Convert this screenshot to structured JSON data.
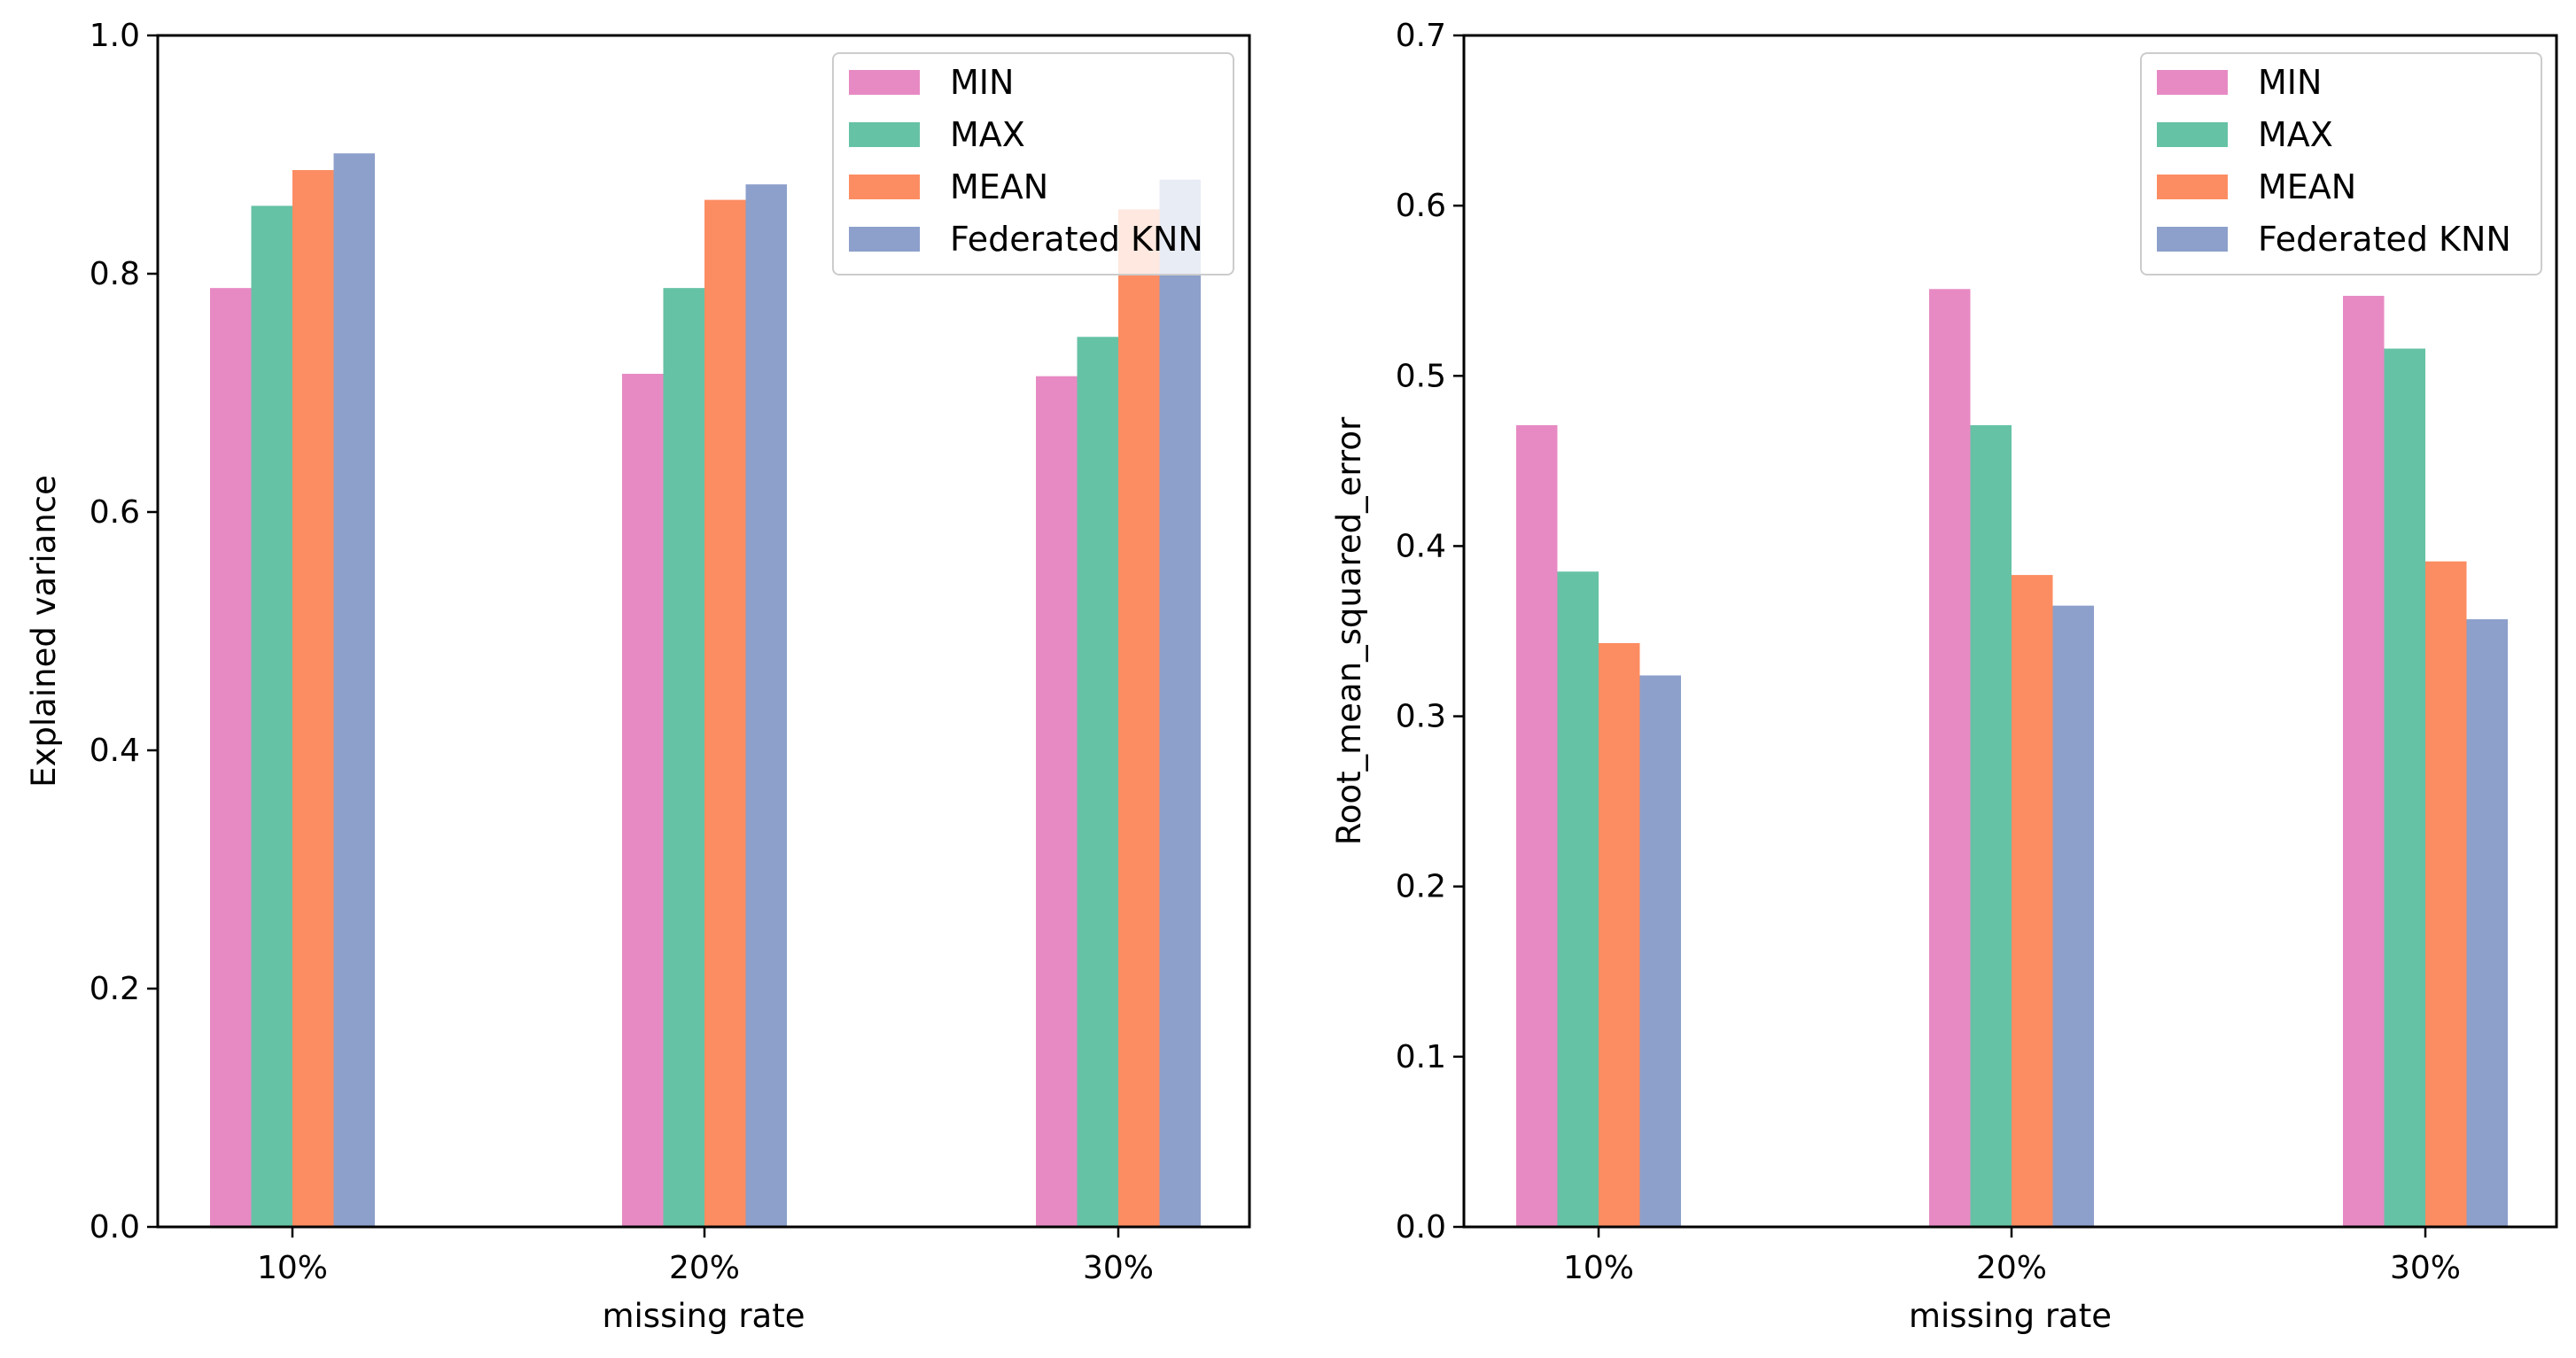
{
  "colors": {
    "MIN": "#e78ac3",
    "MAX": "#66c2a5",
    "MEAN": "#fc8d62",
    "Federated KNN": "#8da0cb"
  },
  "chart_data": [
    {
      "type": "bar",
      "title": "",
      "categories": [
        "10%",
        "20%",
        "30%"
      ],
      "series": [
        {
          "name": "MIN",
          "values": [
            0.788,
            0.716,
            0.714
          ]
        },
        {
          "name": "MAX",
          "values": [
            0.857,
            0.788,
            0.747
          ]
        },
        {
          "name": "MEAN",
          "values": [
            0.887,
            0.862,
            0.854
          ]
        },
        {
          "name": "Federated KNN",
          "values": [
            0.901,
            0.875,
            0.879
          ]
        }
      ],
      "xlabel": "missing rate",
      "ylabel": "Explained variance",
      "ylim": [
        0,
        1.0
      ],
      "yticks": [
        "0.0",
        "0.2",
        "0.4",
        "0.6",
        "0.8",
        "1.0"
      ],
      "legend": "upper-right",
      "legend_labels": [
        "MIN",
        "MAX",
        "MEAN",
        "Federated KNN"
      ]
    },
    {
      "type": "bar",
      "title": "",
      "categories": [
        "10%",
        "20%",
        "30%"
      ],
      "series": [
        {
          "name": "MIN",
          "values": [
            0.471,
            0.551,
            0.547
          ]
        },
        {
          "name": "MAX",
          "values": [
            0.385,
            0.471,
            0.516
          ]
        },
        {
          "name": "MEAN",
          "values": [
            0.343,
            0.383,
            0.391
          ]
        },
        {
          "name": "Federated KNN",
          "values": [
            0.324,
            0.365,
            0.357
          ]
        }
      ],
      "xlabel": "missing rate",
      "ylabel": "Root_mean_squared_error",
      "ylim": [
        0,
        0.7
      ],
      "yticks": [
        "0.0",
        "0.1",
        "0.2",
        "0.3",
        "0.4",
        "0.5",
        "0.6",
        "0.7"
      ],
      "legend": "upper-right",
      "legend_labels": [
        "MIN",
        "MAX",
        "MEAN",
        "Federated KNN"
      ]
    }
  ]
}
